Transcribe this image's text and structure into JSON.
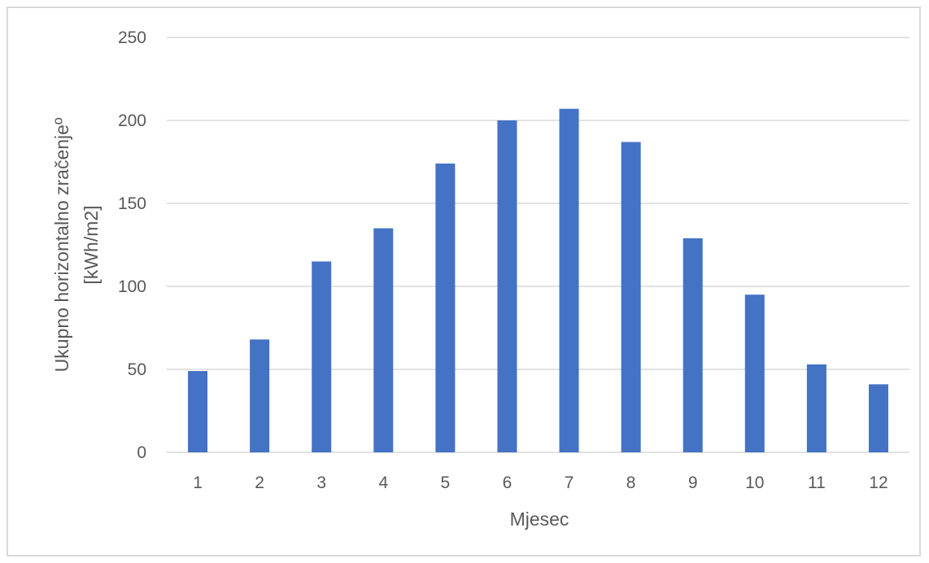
{
  "chart_data": {
    "type": "bar",
    "title": "",
    "xlabel": "Mjesec",
    "ylabel_line1": "Ukupno horizontalno zračenjeº",
    "ylabel_line2": "[kWh/m2]",
    "categories": [
      "1",
      "2",
      "3",
      "4",
      "5",
      "6",
      "7",
      "8",
      "9",
      "10",
      "11",
      "12"
    ],
    "values": [
      49,
      68,
      115,
      135,
      174,
      200,
      207,
      187,
      129,
      95,
      53,
      41
    ],
    "ylim": [
      0,
      250
    ],
    "yticks": [
      "0",
      "50",
      "100",
      "150",
      "200",
      "250"
    ],
    "grid": true,
    "legend": "none",
    "colors": {
      "bar": "#4472C4",
      "grid": "#d9d9d9",
      "text": "#595959",
      "border": "#d9d9d9"
    }
  }
}
